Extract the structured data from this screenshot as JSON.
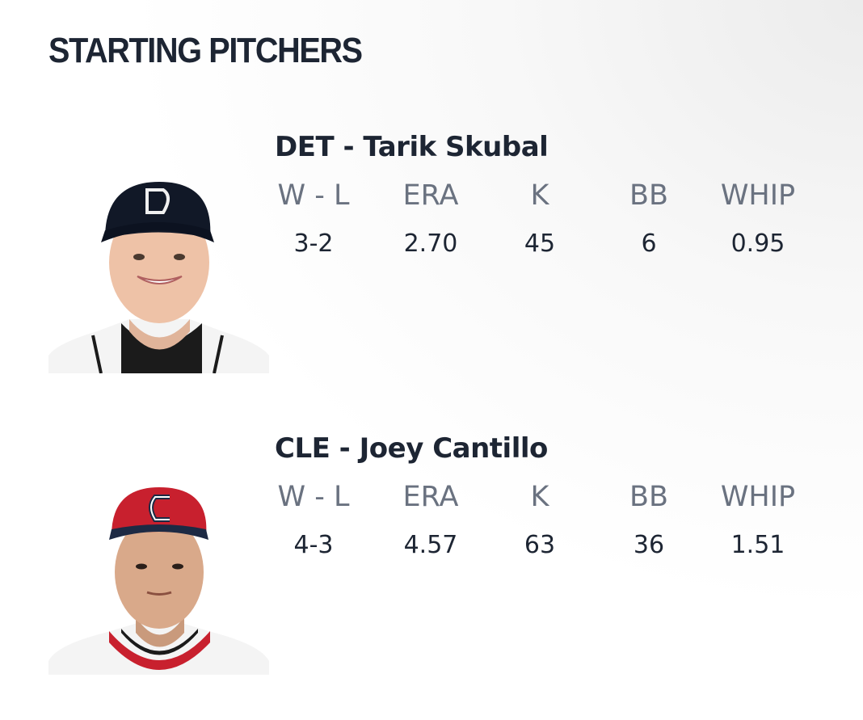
{
  "header": {
    "title": "STARTING PITCHERS"
  },
  "pitchers": [
    {
      "name": "DET - Tarik Skubal",
      "stat_labels": [
        "W - L",
        "ERA",
        "K",
        "BB",
        "WHIP"
      ],
      "stat_values": [
        "3-2",
        "2.70",
        "45",
        "6",
        "0.95"
      ]
    },
    {
      "name": "CLE - Joey Cantillo",
      "stat_labels": [
        "W - L",
        "ERA",
        "K",
        "BB",
        "WHIP"
      ],
      "stat_values": [
        "4-3",
        "4.57",
        "63",
        "36",
        "1.51"
      ]
    }
  ]
}
